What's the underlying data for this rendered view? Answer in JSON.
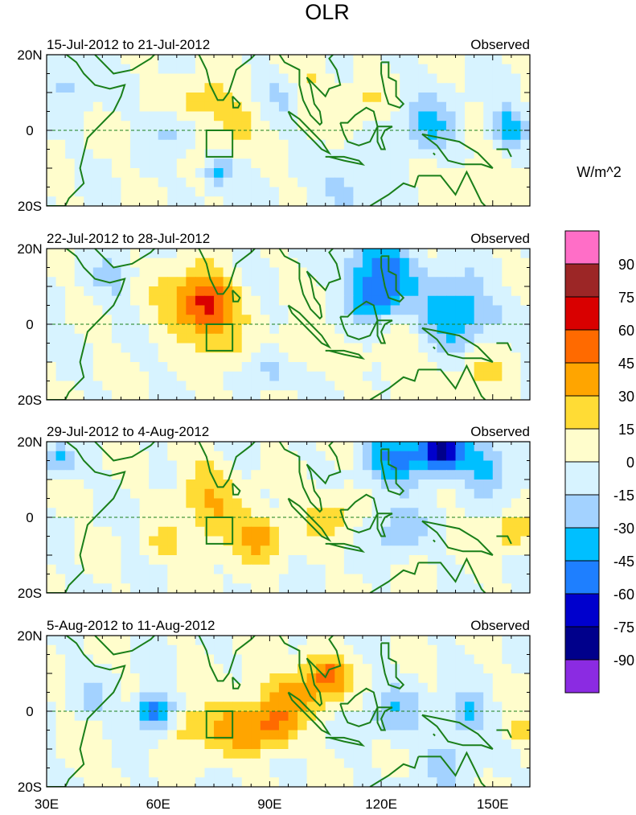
{
  "chart_data": {
    "type": "heatmap",
    "title": "OLR",
    "units_label": "W/m^2",
    "map_extent": {
      "lon": [
        30,
        160
      ],
      "lat": [
        -20,
        20
      ]
    },
    "x_tick_labels": [
      "30E",
      "60E",
      "90E",
      "120E",
      "150E"
    ],
    "x_tick_values": [
      30,
      60,
      90,
      120,
      150
    ],
    "y_tick_labels": [
      "20N",
      "0",
      "20S"
    ],
    "y_tick_values": [
      20,
      0,
      -20
    ],
    "box_region": {
      "lon": [
        73,
        80
      ],
      "lat": [
        -7,
        0
      ]
    },
    "panels": [
      {
        "date_range": "15-Jul-2012 to 21-Jul-2012",
        "label": "Observed",
        "anomalies": [
          {
            "lon": 71,
            "lat": 8,
            "value": 20,
            "r": 7
          },
          {
            "lon": 80,
            "lat": 2,
            "value": 25,
            "r": 6
          },
          {
            "lon": 100,
            "lat": 13,
            "value": 18,
            "r": 7
          },
          {
            "lon": 116,
            "lat": 7,
            "value": 15,
            "r": 6
          },
          {
            "lon": 133,
            "lat": 0,
            "value": -35,
            "r": 8
          },
          {
            "lon": 154,
            "lat": 1,
            "value": -40,
            "r": 5
          },
          {
            "lon": 64,
            "lat": 0,
            "value": -22,
            "r": 5
          },
          {
            "lon": 76,
            "lat": -11,
            "value": -35,
            "r": 4
          },
          {
            "lon": 36,
            "lat": 13,
            "value": -20,
            "r": 6
          },
          {
            "lon": 94,
            "lat": 10,
            "value": -18,
            "r": 6
          },
          {
            "lon": 110,
            "lat": -15,
            "value": -22,
            "r": 7
          },
          {
            "lon": 140,
            "lat": -14,
            "value": 12,
            "r": 10
          }
        ]
      },
      {
        "date_range": "22-Jul-2012 to 28-Jul-2012",
        "label": "Observed",
        "anomalies": [
          {
            "lon": 74,
            "lat": 5,
            "value": 50,
            "r": 7
          },
          {
            "lon": 68,
            "lat": 6,
            "value": 30,
            "r": 9
          },
          {
            "lon": 78,
            "lat": -7,
            "value": 20,
            "r": 6
          },
          {
            "lon": 97,
            "lat": -5,
            "value": 22,
            "r": 5
          },
          {
            "lon": 120,
            "lat": 14,
            "value": -55,
            "r": 9
          },
          {
            "lon": 140,
            "lat": 3,
            "value": -50,
            "r": 9
          },
          {
            "lon": 118,
            "lat": 6,
            "value": -30,
            "r": 6
          },
          {
            "lon": 91,
            "lat": -12,
            "value": -25,
            "r": 5
          },
          {
            "lon": 48,
            "lat": 12,
            "value": -18,
            "r": 6
          },
          {
            "lon": 148,
            "lat": -12,
            "value": 15,
            "r": 8
          },
          {
            "lon": 126,
            "lat": -12,
            "value": 12,
            "r": 8
          }
        ]
      },
      {
        "date_range": "29-Jul-2012 to 4-Aug-2012",
        "label": "Observed",
        "anomalies": [
          {
            "lon": 88,
            "lat": -5,
            "value": 38,
            "r": 6
          },
          {
            "lon": 76,
            "lat": -2,
            "value": 25,
            "r": 8
          },
          {
            "lon": 72,
            "lat": 9,
            "value": 20,
            "r": 8
          },
          {
            "lon": 106,
            "lat": 1,
            "value": 22,
            "r": 7
          },
          {
            "lon": 62,
            "lat": -7,
            "value": 18,
            "r": 5
          },
          {
            "lon": 136,
            "lat": 17,
            "value": -75,
            "r": 6
          },
          {
            "lon": 124,
            "lat": 16,
            "value": -45,
            "r": 8
          },
          {
            "lon": 148,
            "lat": 14,
            "value": -35,
            "r": 7
          },
          {
            "lon": 33,
            "lat": 15,
            "value": -35,
            "r": 4
          },
          {
            "lon": 124,
            "lat": -3,
            "value": -25,
            "r": 7
          },
          {
            "lon": 155,
            "lat": -4,
            "value": 25,
            "r": 5
          }
        ]
      },
      {
        "date_range": "5-Aug-2012 to 11-Aug-2012",
        "label": "Observed",
        "anomalies": [
          {
            "lon": 105,
            "lat": 9,
            "value": 55,
            "r": 6
          },
          {
            "lon": 94,
            "lat": 3,
            "value": 30,
            "r": 8
          },
          {
            "lon": 80,
            "lat": -4,
            "value": 32,
            "r": 8
          },
          {
            "lon": 90,
            "lat": -5,
            "value": 35,
            "r": 6
          },
          {
            "lon": 68,
            "lat": -4,
            "value": 25,
            "r": 6
          },
          {
            "lon": 59,
            "lat": 0,
            "value": -60,
            "r": 5
          },
          {
            "lon": 123,
            "lat": 0,
            "value": -25,
            "r": 7
          },
          {
            "lon": 143,
            "lat": 0,
            "value": -35,
            "r": 5
          },
          {
            "lon": 138,
            "lat": -12,
            "value": -15,
            "r": 10
          },
          {
            "lon": 42,
            "lat": 3,
            "value": -18,
            "r": 5
          },
          {
            "lon": 157,
            "lat": -5,
            "value": 25,
            "r": 4
          },
          {
            "lon": 40,
            "lat": -12,
            "value": 12,
            "r": 6
          }
        ]
      }
    ],
    "colorbar": {
      "tick_labels": [
        "90",
        "75",
        "60",
        "45",
        "30",
        "15",
        "0",
        "-15",
        "-30",
        "-45",
        "-60",
        "-75",
        "-90"
      ],
      "levels": [
        -90,
        -75,
        -60,
        -45,
        -30,
        -15,
        0,
        15,
        30,
        45,
        60,
        75,
        90
      ],
      "colors": [
        "#8B2BE2",
        "#00008B",
        "#0000CD",
        "#1E7FFF",
        "#00BFFF",
        "#A3D2FF",
        "#D7F3FF",
        "#FFFDCC",
        "#FFDC35",
        "#FFA500",
        "#FF6A00",
        "#D90000",
        "#9C2626",
        "#FF6EC7"
      ]
    },
    "land_color": "#1A7F1A",
    "equator_color": "#1A7F1A"
  }
}
